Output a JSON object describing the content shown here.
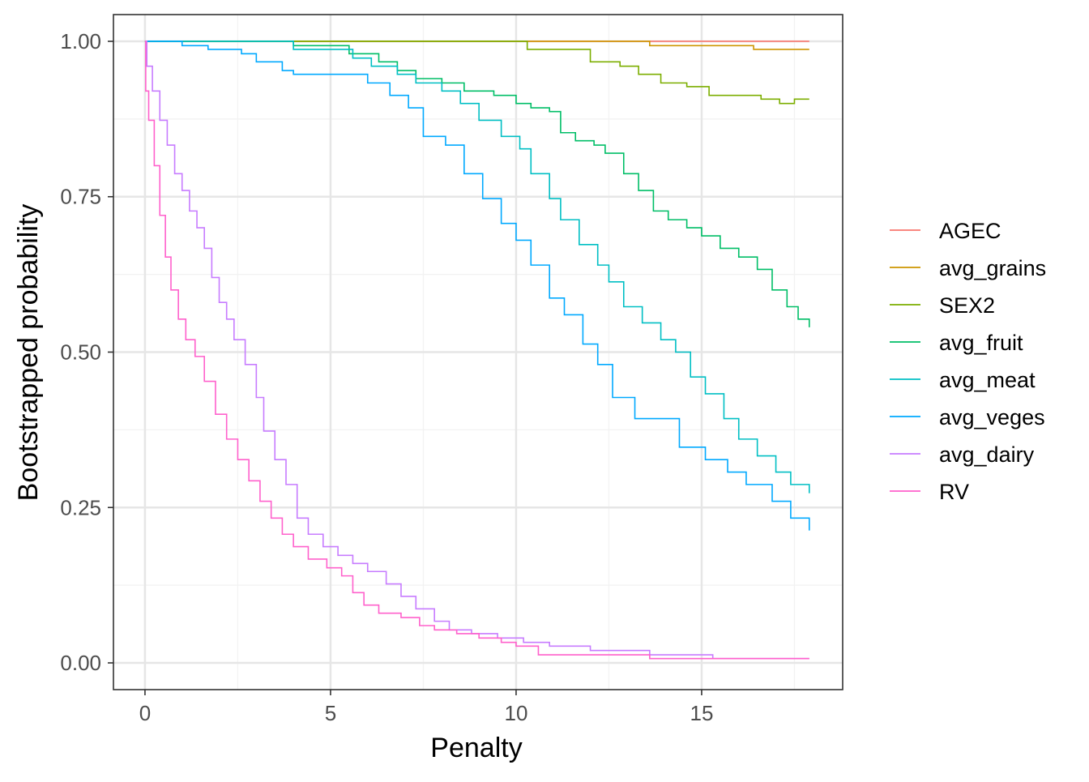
{
  "chart_data": {
    "type": "line",
    "xlabel": "Penalty",
    "ylabel": "Bootstrapped probability",
    "xlim": [
      -0.85,
      18.8
    ],
    "ylim": [
      -0.043,
      1.043
    ],
    "x_ticks": [
      0,
      5,
      10,
      15
    ],
    "x_tick_labels": [
      "0",
      "5",
      "10",
      "15"
    ],
    "y_ticks": [
      0,
      0.25,
      0.5,
      0.75,
      1.0
    ],
    "y_tick_labels": [
      "0.00",
      "0.25",
      "0.50",
      "0.75",
      "1.00"
    ],
    "grid": true,
    "legend_position": "right",
    "series": [
      {
        "name": "AGEC",
        "color": "#F8766D",
        "points": [
          [
            0,
            1.0
          ],
          [
            17.9,
            1.0
          ]
        ]
      },
      {
        "name": "avg_grains",
        "color": "#CD9600",
        "points": [
          [
            0,
            1.0
          ],
          [
            13.6,
            1.0
          ],
          [
            13.6,
            0.993
          ],
          [
            16.4,
            0.993
          ],
          [
            16.4,
            0.987
          ],
          [
            17.9,
            0.987
          ]
        ]
      },
      {
        "name": "SEX2",
        "color": "#7CAE00",
        "points": [
          [
            0,
            1.0
          ],
          [
            10.0,
            1.0
          ],
          [
            10.3,
            0.987
          ],
          [
            11.7,
            0.987
          ],
          [
            12.0,
            0.967
          ],
          [
            12.8,
            0.96
          ],
          [
            13.3,
            0.947
          ],
          [
            13.9,
            0.933
          ],
          [
            14.6,
            0.927
          ],
          [
            15.2,
            0.913
          ],
          [
            16.1,
            0.913
          ],
          [
            16.6,
            0.907
          ],
          [
            17.1,
            0.9
          ],
          [
            17.5,
            0.907
          ],
          [
            17.9,
            0.907
          ]
        ]
      },
      {
        "name": "avg_fruit",
        "color": "#00BE67",
        "points": [
          [
            0,
            1.0
          ],
          [
            3.9,
            1.0
          ],
          [
            4.0,
            0.993
          ],
          [
            5.5,
            0.98
          ],
          [
            6.3,
            0.967
          ],
          [
            6.8,
            0.953
          ],
          [
            7.3,
            0.94
          ],
          [
            8.0,
            0.933
          ],
          [
            8.6,
            0.92
          ],
          [
            9.4,
            0.913
          ],
          [
            10.0,
            0.9
          ],
          [
            10.4,
            0.893
          ],
          [
            10.9,
            0.887
          ],
          [
            11.2,
            0.853
          ],
          [
            11.6,
            0.84
          ],
          [
            12.1,
            0.833
          ],
          [
            12.4,
            0.82
          ],
          [
            12.9,
            0.787
          ],
          [
            13.3,
            0.76
          ],
          [
            13.7,
            0.727
          ],
          [
            14.1,
            0.713
          ],
          [
            14.6,
            0.7
          ],
          [
            15.0,
            0.687
          ],
          [
            15.5,
            0.667
          ],
          [
            16.0,
            0.653
          ],
          [
            16.5,
            0.633
          ],
          [
            16.9,
            0.6
          ],
          [
            17.3,
            0.573
          ],
          [
            17.6,
            0.553
          ],
          [
            17.9,
            0.54
          ]
        ]
      },
      {
        "name": "avg_meat",
        "color": "#00BFC4",
        "points": [
          [
            0,
            1.0
          ],
          [
            3.9,
            1.0
          ],
          [
            4.0,
            0.987
          ],
          [
            5.3,
            0.987
          ],
          [
            5.6,
            0.973
          ],
          [
            6.1,
            0.96
          ],
          [
            6.8,
            0.947
          ],
          [
            7.3,
            0.933
          ],
          [
            8.0,
            0.92
          ],
          [
            8.5,
            0.9
          ],
          [
            9.0,
            0.873
          ],
          [
            9.6,
            0.847
          ],
          [
            10.1,
            0.827
          ],
          [
            10.4,
            0.787
          ],
          [
            10.9,
            0.747
          ],
          [
            11.2,
            0.713
          ],
          [
            11.7,
            0.673
          ],
          [
            12.2,
            0.64
          ],
          [
            12.5,
            0.613
          ],
          [
            12.9,
            0.573
          ],
          [
            13.4,
            0.547
          ],
          [
            13.9,
            0.52
          ],
          [
            14.3,
            0.5
          ],
          [
            14.7,
            0.46
          ],
          [
            15.1,
            0.433
          ],
          [
            15.6,
            0.393
          ],
          [
            16.0,
            0.36
          ],
          [
            16.5,
            0.333
          ],
          [
            17.0,
            0.307
          ],
          [
            17.4,
            0.287
          ],
          [
            17.9,
            0.273
          ]
        ]
      },
      {
        "name": "avg_veges",
        "color": "#00A9FF",
        "points": [
          [
            0,
            1.0
          ],
          [
            0.9,
            1.0
          ],
          [
            1.0,
            0.993
          ],
          [
            1.7,
            0.987
          ],
          [
            2.6,
            0.98
          ],
          [
            3.0,
            0.967
          ],
          [
            3.7,
            0.953
          ],
          [
            4.0,
            0.947
          ],
          [
            5.6,
            0.947
          ],
          [
            6.0,
            0.933
          ],
          [
            6.6,
            0.913
          ],
          [
            7.1,
            0.893
          ],
          [
            7.5,
            0.847
          ],
          [
            8.1,
            0.833
          ],
          [
            8.6,
            0.787
          ],
          [
            9.1,
            0.747
          ],
          [
            9.6,
            0.707
          ],
          [
            10.0,
            0.68
          ],
          [
            10.4,
            0.64
          ],
          [
            10.9,
            0.587
          ],
          [
            11.3,
            0.56
          ],
          [
            11.8,
            0.513
          ],
          [
            12.2,
            0.48
          ],
          [
            12.6,
            0.427
          ],
          [
            13.2,
            0.393
          ],
          [
            14.1,
            0.393
          ],
          [
            14.4,
            0.347
          ],
          [
            15.1,
            0.327
          ],
          [
            15.7,
            0.307
          ],
          [
            16.2,
            0.287
          ],
          [
            16.9,
            0.26
          ],
          [
            17.4,
            0.233
          ],
          [
            17.9,
            0.213
          ]
        ]
      },
      {
        "name": "avg_dairy",
        "color": "#C77CFF",
        "points": [
          [
            0,
            1.0
          ],
          [
            0.05,
            0.96
          ],
          [
            0.2,
            0.92
          ],
          [
            0.4,
            0.873
          ],
          [
            0.6,
            0.833
          ],
          [
            0.8,
            0.787
          ],
          [
            1.0,
            0.76
          ],
          [
            1.2,
            0.727
          ],
          [
            1.4,
            0.7
          ],
          [
            1.6,
            0.667
          ],
          [
            1.8,
            0.62
          ],
          [
            2.0,
            0.58
          ],
          [
            2.2,
            0.553
          ],
          [
            2.4,
            0.52
          ],
          [
            2.7,
            0.48
          ],
          [
            3.0,
            0.427
          ],
          [
            3.2,
            0.373
          ],
          [
            3.5,
            0.327
          ],
          [
            3.8,
            0.287
          ],
          [
            4.1,
            0.233
          ],
          [
            4.4,
            0.207
          ],
          [
            4.8,
            0.187
          ],
          [
            5.2,
            0.173
          ],
          [
            5.6,
            0.16
          ],
          [
            6.0,
            0.147
          ],
          [
            6.5,
            0.127
          ],
          [
            6.9,
            0.107
          ],
          [
            7.3,
            0.087
          ],
          [
            7.8,
            0.067
          ],
          [
            8.2,
            0.053
          ],
          [
            8.8,
            0.047
          ],
          [
            9.5,
            0.04
          ],
          [
            10.2,
            0.033
          ],
          [
            10.9,
            0.027
          ],
          [
            12.0,
            0.02
          ],
          [
            13.6,
            0.013
          ],
          [
            15.3,
            0.007
          ],
          [
            17.9,
            0.007
          ]
        ]
      },
      {
        "name": "RV",
        "color": "#FF61CC",
        "points": [
          [
            0,
            1.0
          ],
          [
            0.02,
            0.92
          ],
          [
            0.1,
            0.873
          ],
          [
            0.25,
            0.8
          ],
          [
            0.4,
            0.72
          ],
          [
            0.55,
            0.653
          ],
          [
            0.7,
            0.6
          ],
          [
            0.9,
            0.553
          ],
          [
            1.1,
            0.52
          ],
          [
            1.35,
            0.493
          ],
          [
            1.6,
            0.453
          ],
          [
            1.9,
            0.4
          ],
          [
            2.2,
            0.36
          ],
          [
            2.5,
            0.327
          ],
          [
            2.8,
            0.293
          ],
          [
            3.1,
            0.26
          ],
          [
            3.4,
            0.233
          ],
          [
            3.7,
            0.207
          ],
          [
            4.0,
            0.187
          ],
          [
            4.4,
            0.167
          ],
          [
            4.9,
            0.153
          ],
          [
            5.3,
            0.14
          ],
          [
            5.6,
            0.113
          ],
          [
            5.9,
            0.093
          ],
          [
            6.3,
            0.08
          ],
          [
            6.9,
            0.073
          ],
          [
            7.4,
            0.06
          ],
          [
            7.8,
            0.053
          ],
          [
            8.4,
            0.047
          ],
          [
            9.0,
            0.04
          ],
          [
            9.6,
            0.033
          ],
          [
            10.0,
            0.027
          ],
          [
            10.6,
            0.013
          ],
          [
            13.6,
            0.007
          ],
          [
            17.9,
            0.007
          ]
        ]
      }
    ]
  }
}
